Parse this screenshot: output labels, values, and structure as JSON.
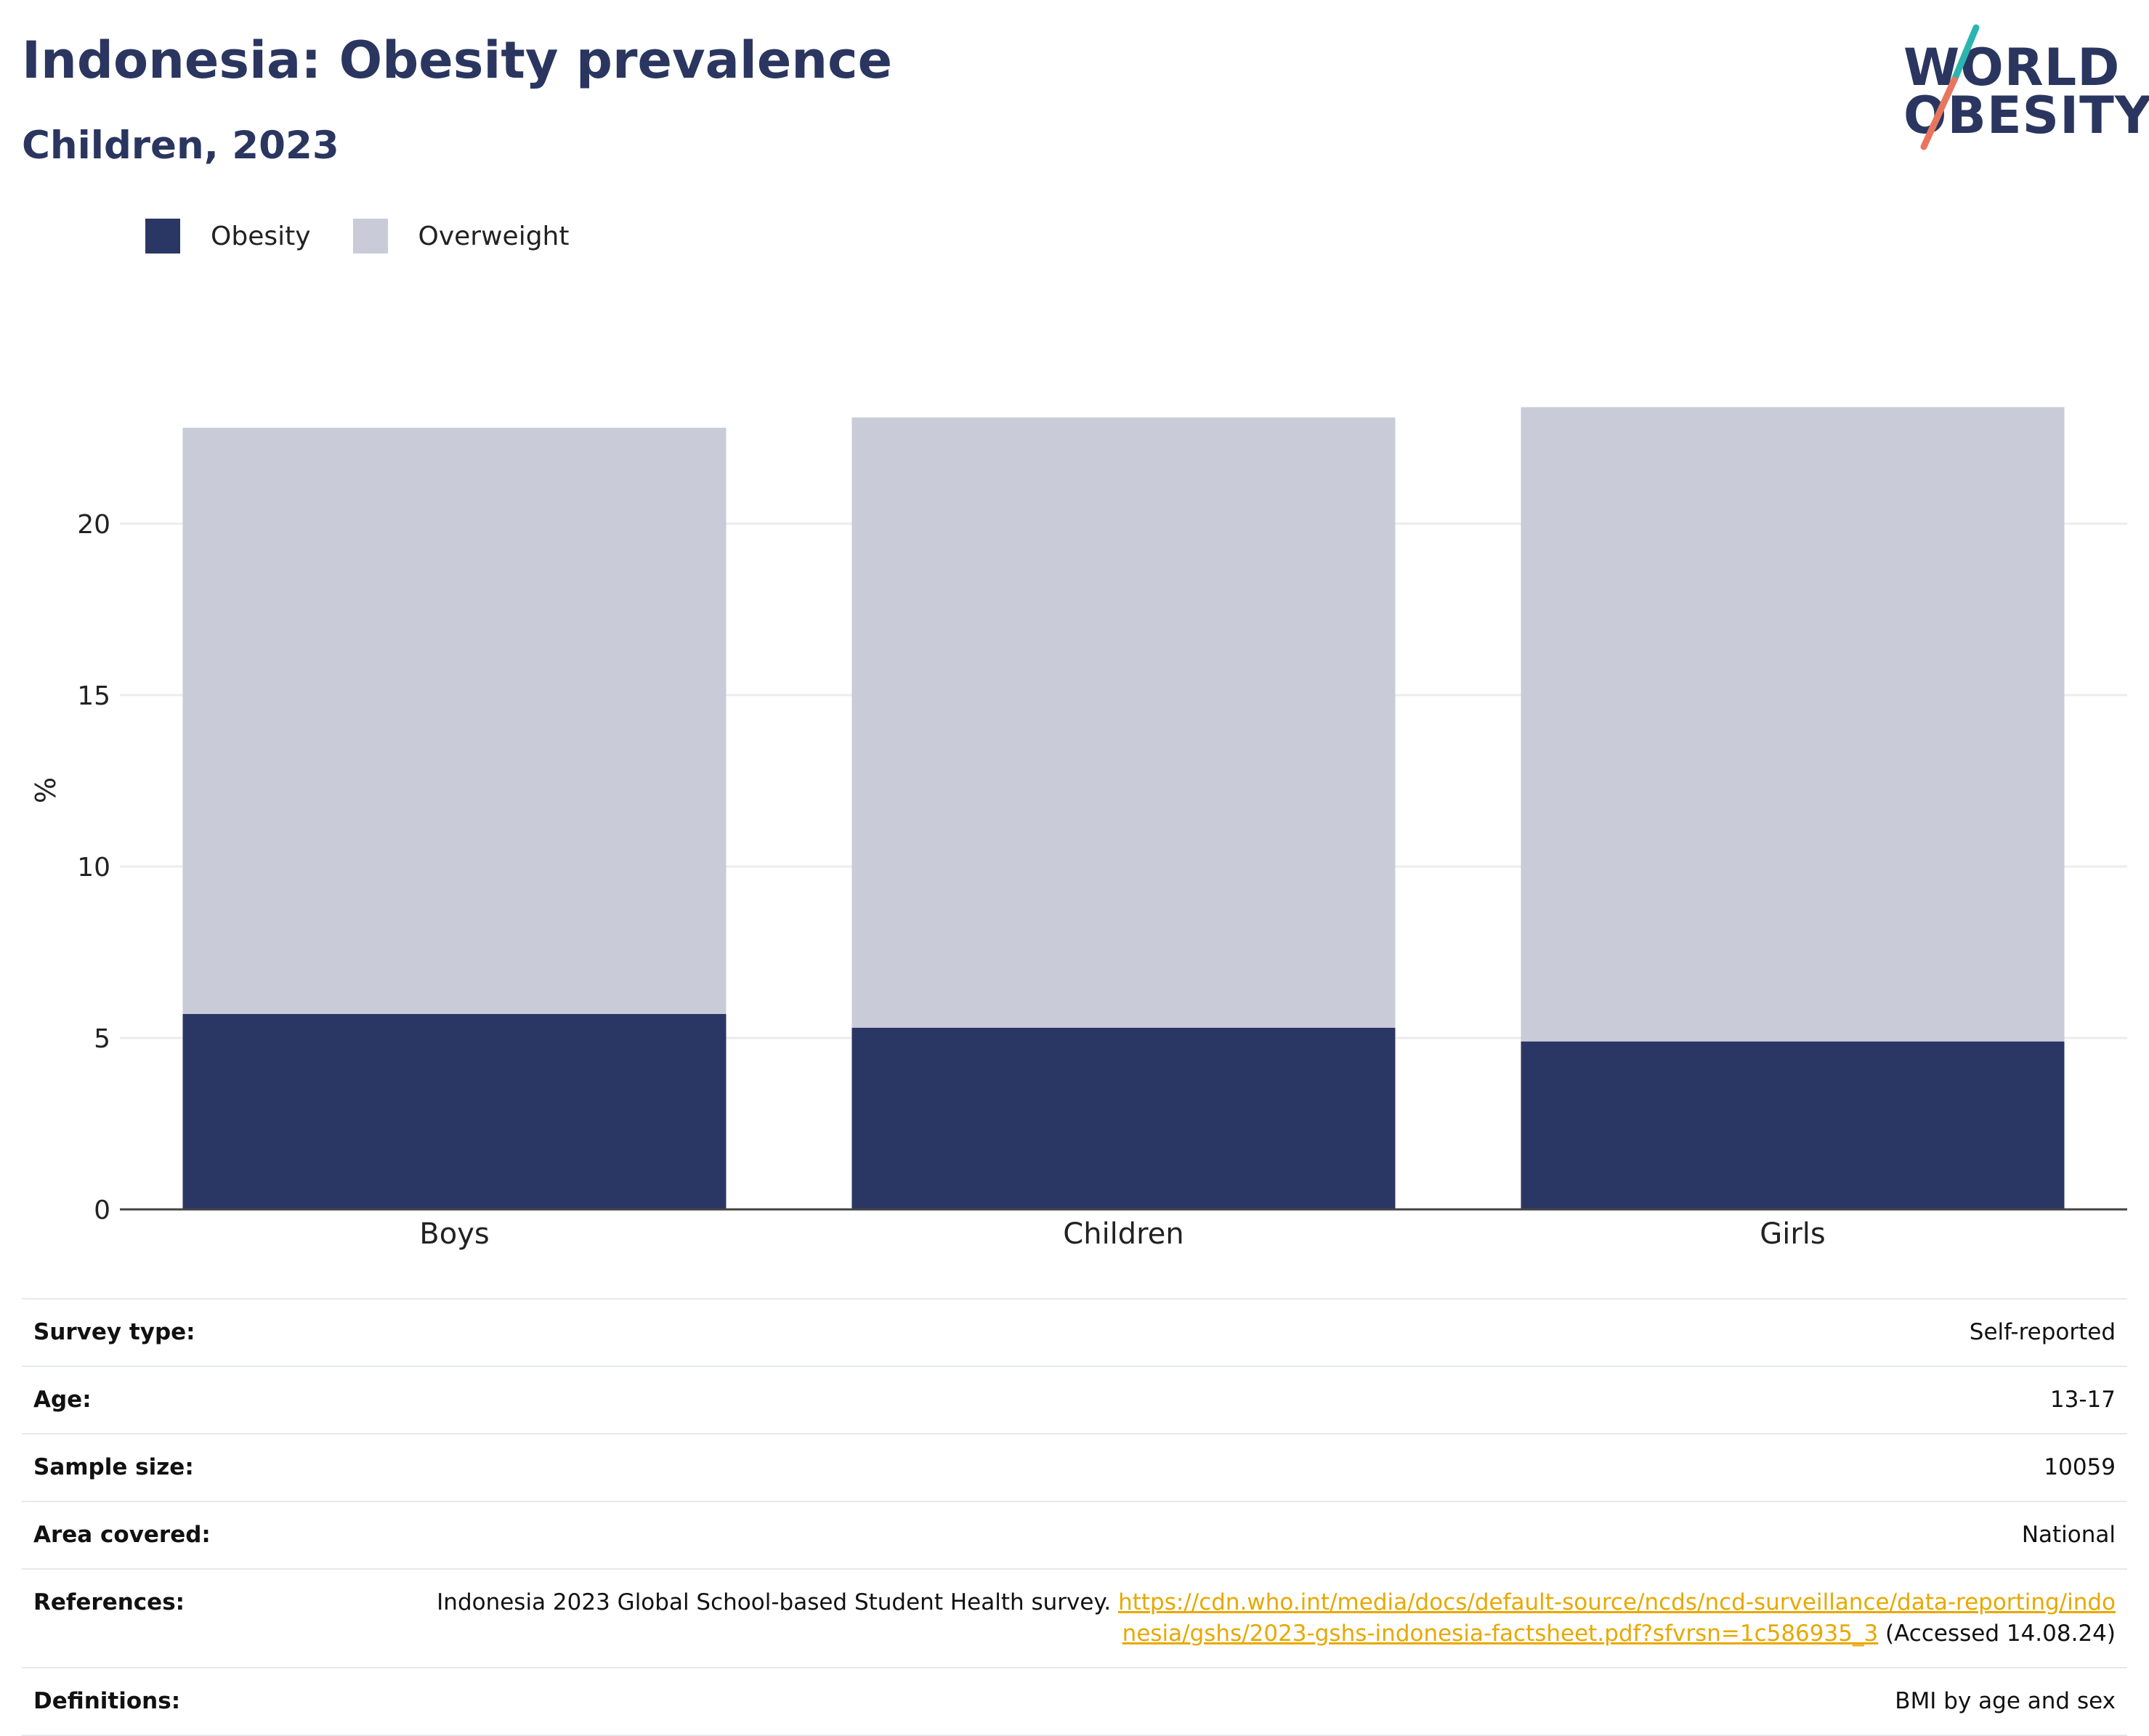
{
  "title": "Indonesia: Obesity prevalence",
  "subtitle": "Children, 2023",
  "logo": {
    "line1": "WORLD",
    "line2": "OBESITY",
    "slash_colors": [
      "#2bb5b1",
      "#e8765f"
    ]
  },
  "colors": {
    "obesity": "#2a3764",
    "overweight": "#c9ccd8",
    "title": "#2a365f",
    "link": "#e8a800"
  },
  "chart_data": {
    "type": "bar",
    "stacked": true,
    "categories": [
      "Boys",
      "Children",
      "Girls"
    ],
    "series": [
      {
        "name": "Obesity",
        "values": [
          5.7,
          5.3,
          4.9
        ]
      },
      {
        "name": "Overweight",
        "values": [
          17.1,
          17.8,
          18.5
        ]
      }
    ],
    "ylabel": "%",
    "xlabel": "",
    "ylim": [
      0,
      25
    ],
    "yticks": [
      0,
      5,
      10,
      15,
      20
    ],
    "grid": true,
    "legend_position": "top-left"
  },
  "info": {
    "survey_type": {
      "label": "Survey type:",
      "value": "Self-reported"
    },
    "age": {
      "label": "Age:",
      "value": "13-17"
    },
    "sample_size": {
      "label": "Sample size:",
      "value": "10059"
    },
    "area": {
      "label": "Area covered:",
      "value": "National"
    },
    "references": {
      "label": "References:",
      "prefix": "Indonesia 2023 Global School-based Student Health survey.",
      "link": "https://cdn.who.int/media/docs/default-source/ncds/ncd-surveillance/data-reporting/indonesia/gshs/2023-gshs-indonesia-factsheet.pdf?sfvrsn=1c586935_3",
      "suffix": "(Accessed 14.08.24)"
    },
    "definitions": {
      "label": "Definitions:",
      "value": "BMI by age and sex"
    }
  }
}
